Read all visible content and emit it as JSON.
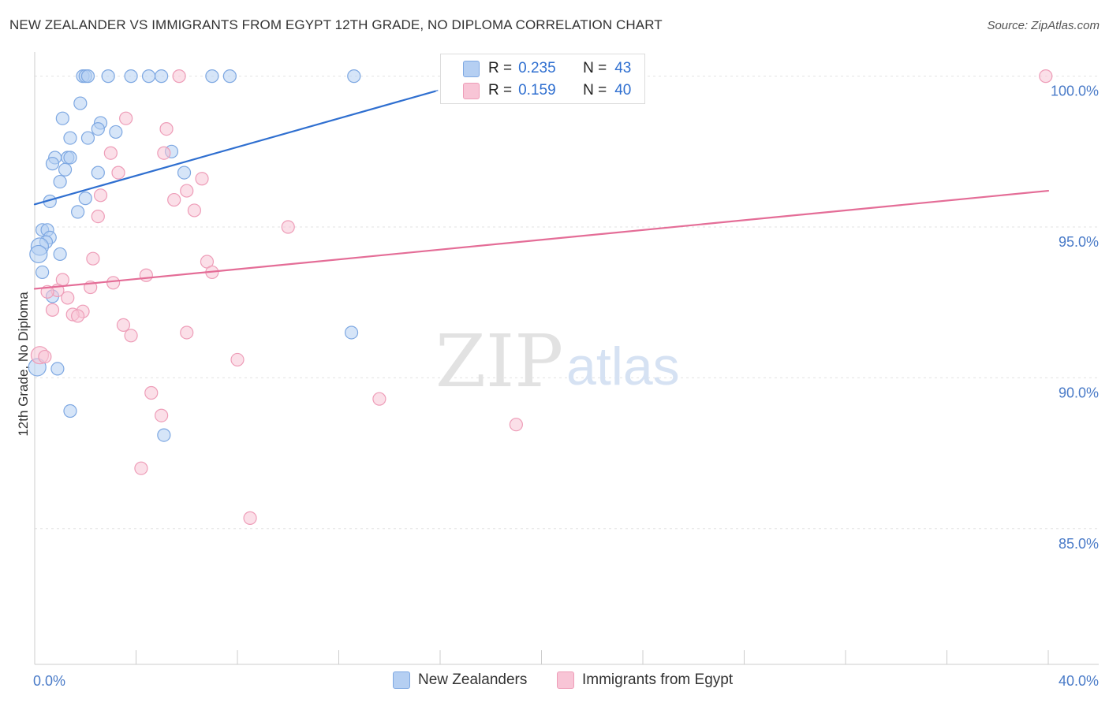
{
  "title": "NEW ZEALANDER VS IMMIGRANTS FROM EGYPT 12TH GRADE, NO DIPLOMA CORRELATION CHART",
  "source": "Source: ZipAtlas.com",
  "watermark": {
    "zip": "ZIP",
    "atlas": "atlas"
  },
  "legend": {
    "r_label": "R =",
    "n_label": "N =",
    "rows": [
      {
        "r": "0.235",
        "n": "43"
      },
      {
        "r": "0.159",
        "n": "40"
      }
    ]
  },
  "chart_data": {
    "type": "scatter",
    "title": "NEW ZEALANDER VS IMMIGRANTS FROM EGYPT 12TH GRADE, NO DIPLOMA CORRELATION CHART",
    "xlabel": "",
    "ylabel": "12th Grade, No Diploma",
    "xlim": [
      0,
      40
    ],
    "ylim": [
      80.5,
      100.8
    ],
    "x_tick_labels": [
      {
        "value": 0,
        "label": "0.0%"
      },
      {
        "value": 40,
        "label": "40.0%"
      }
    ],
    "y_tick_labels": [
      {
        "value": 100,
        "label": "100.0%"
      },
      {
        "value": 95,
        "label": "95.0%"
      },
      {
        "value": 90,
        "label": "90.0%"
      },
      {
        "value": 85,
        "label": "85.0%"
      }
    ],
    "x_minor_ticks": [
      0,
      4,
      8,
      12,
      16,
      20,
      24,
      28,
      32,
      36,
      40
    ],
    "colors": {
      "blue_fill": "#b5cff2",
      "blue_stroke": "#7ea8e2",
      "blue_line": "#2f6fd0",
      "pink_fill": "#f8c5d6",
      "pink_stroke": "#ee9db8",
      "pink_line": "#e46d97",
      "tick_label": "#4a7bc8"
    },
    "series": [
      {
        "name": "New Zealanders",
        "color": "blue",
        "r": 0.235,
        "n": 43,
        "trend": {
          "x": [
            0,
            15.8
          ],
          "y": [
            95.75,
            99.5
          ],
          "dash_to": {
            "x": 17.0,
            "y": 99.83
          }
        },
        "points": [
          {
            "x": 1.9,
            "y": 100.0
          },
          {
            "x": 2.0,
            "y": 100.0
          },
          {
            "x": 2.1,
            "y": 100.0
          },
          {
            "x": 2.9,
            "y": 100.0
          },
          {
            "x": 3.8,
            "y": 100.0
          },
          {
            "x": 4.5,
            "y": 100.0
          },
          {
            "x": 5.0,
            "y": 100.0
          },
          {
            "x": 7.0,
            "y": 100.0
          },
          {
            "x": 7.7,
            "y": 100.0
          },
          {
            "x": 12.6,
            "y": 100.0
          },
          {
            "x": 1.8,
            "y": 99.1
          },
          {
            "x": 1.1,
            "y": 98.6
          },
          {
            "x": 2.6,
            "y": 98.45
          },
          {
            "x": 2.5,
            "y": 98.25
          },
          {
            "x": 3.2,
            "y": 98.15
          },
          {
            "x": 1.4,
            "y": 97.95
          },
          {
            "x": 2.1,
            "y": 97.95
          },
          {
            "x": 5.4,
            "y": 97.5
          },
          {
            "x": 0.8,
            "y": 97.3
          },
          {
            "x": 1.3,
            "y": 97.3
          },
          {
            "x": 1.4,
            "y": 97.3
          },
          {
            "x": 0.7,
            "y": 97.1
          },
          {
            "x": 1.2,
            "y": 96.9
          },
          {
            "x": 2.5,
            "y": 96.8
          },
          {
            "x": 5.9,
            "y": 96.8
          },
          {
            "x": 1.0,
            "y": 96.5
          },
          {
            "x": 2.0,
            "y": 95.95
          },
          {
            "x": 0.6,
            "y": 95.85
          },
          {
            "x": 1.7,
            "y": 95.5
          },
          {
            "x": 0.3,
            "y": 94.9
          },
          {
            "x": 0.5,
            "y": 94.9
          },
          {
            "x": 0.6,
            "y": 94.65
          },
          {
            "x": 0.45,
            "y": 94.5
          },
          {
            "x": 0.2,
            "y": 94.35
          },
          {
            "x": 0.15,
            "y": 94.1
          },
          {
            "x": 1.0,
            "y": 94.1
          },
          {
            "x": 0.3,
            "y": 93.5
          },
          {
            "x": 0.7,
            "y": 92.7
          },
          {
            "x": 12.5,
            "y": 91.5
          },
          {
            "x": 0.1,
            "y": 90.35
          },
          {
            "x": 0.9,
            "y": 90.3
          },
          {
            "x": 1.4,
            "y": 88.9
          },
          {
            "x": 5.1,
            "y": 88.1
          }
        ]
      },
      {
        "name": "Immigrants from Egypt",
        "color": "pink",
        "r": 0.159,
        "n": 40,
        "trend": {
          "x": [
            0,
            40
          ],
          "y": [
            92.95,
            96.2
          ]
        },
        "points": [
          {
            "x": 5.7,
            "y": 100.0
          },
          {
            "x": 39.9,
            "y": 100.0
          },
          {
            "x": 3.6,
            "y": 98.6
          },
          {
            "x": 5.2,
            "y": 98.25
          },
          {
            "x": 3.0,
            "y": 97.45
          },
          {
            "x": 5.1,
            "y": 97.45
          },
          {
            "x": 3.3,
            "y": 96.8
          },
          {
            "x": 6.6,
            "y": 96.6
          },
          {
            "x": 6.0,
            "y": 96.2
          },
          {
            "x": 2.6,
            "y": 96.05
          },
          {
            "x": 5.5,
            "y": 95.9
          },
          {
            "x": 6.3,
            "y": 95.55
          },
          {
            "x": 2.5,
            "y": 95.35
          },
          {
            "x": 10.0,
            "y": 95.0
          },
          {
            "x": 2.3,
            "y": 93.95
          },
          {
            "x": 6.8,
            "y": 93.85
          },
          {
            "x": 7.0,
            "y": 93.5
          },
          {
            "x": 4.4,
            "y": 93.4
          },
          {
            "x": 1.1,
            "y": 93.25
          },
          {
            "x": 3.1,
            "y": 93.15
          },
          {
            "x": 2.2,
            "y": 93.0
          },
          {
            "x": 0.9,
            "y": 92.9
          },
          {
            "x": 0.5,
            "y": 92.85
          },
          {
            "x": 1.3,
            "y": 92.65
          },
          {
            "x": 0.7,
            "y": 92.25
          },
          {
            "x": 1.9,
            "y": 92.2
          },
          {
            "x": 1.5,
            "y": 92.1
          },
          {
            "x": 1.7,
            "y": 92.05
          },
          {
            "x": 3.5,
            "y": 91.75
          },
          {
            "x": 3.8,
            "y": 91.4
          },
          {
            "x": 6.0,
            "y": 91.5
          },
          {
            "x": 0.2,
            "y": 90.75
          },
          {
            "x": 0.4,
            "y": 90.7
          },
          {
            "x": 8.0,
            "y": 90.6
          },
          {
            "x": 13.6,
            "y": 89.3
          },
          {
            "x": 4.6,
            "y": 89.5
          },
          {
            "x": 5.0,
            "y": 88.75
          },
          {
            "x": 19.0,
            "y": 88.45
          },
          {
            "x": 4.2,
            "y": 87.0
          },
          {
            "x": 8.5,
            "y": 85.35
          }
        ]
      }
    ]
  }
}
